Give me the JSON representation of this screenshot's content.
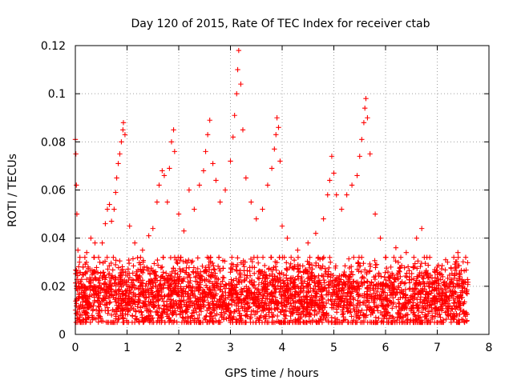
{
  "chart_data": {
    "type": "scatter",
    "title": "Day 120 of 2015, Rate Of TEC Index for receiver ctab",
    "xlabel": "GPS time / hours",
    "ylabel": "ROTI / TECUs",
    "xlim": [
      0,
      8
    ],
    "ylim": [
      0,
      0.12
    ],
    "xticks": [
      0,
      1,
      2,
      3,
      4,
      5,
      6,
      7,
      8
    ],
    "xtick_labels": [
      "0",
      "1",
      "2",
      "3",
      "4",
      "5",
      "6",
      "7",
      "8"
    ],
    "yticks": [
      0,
      0.02,
      0.04,
      0.06,
      0.08,
      0.1,
      0.12
    ],
    "ytick_labels": [
      "0",
      "0.02",
      "0.04",
      "0.06",
      "0.08",
      "0.1",
      "0.12"
    ],
    "grid": true,
    "marker": "+",
    "color": "#ff0000",
    "series": [
      {
        "name": "ROTI",
        "points": [
          [
            0.0,
            0.081
          ],
          [
            0.01,
            0.075
          ],
          [
            0.02,
            0.062
          ],
          [
            0.03,
            0.05
          ],
          [
            0.05,
            0.035
          ],
          [
            0.08,
            0.03
          ],
          [
            0.1,
            0.022
          ],
          [
            0.15,
            0.028
          ],
          [
            0.22,
            0.034
          ],
          [
            0.3,
            0.04
          ],
          [
            0.38,
            0.038
          ],
          [
            0.45,
            0.032
          ],
          [
            0.52,
            0.038
          ],
          [
            0.58,
            0.046
          ],
          [
            0.62,
            0.052
          ],
          [
            0.66,
            0.054
          ],
          [
            0.7,
            0.047
          ],
          [
            0.75,
            0.052
          ],
          [
            0.78,
            0.059
          ],
          [
            0.8,
            0.065
          ],
          [
            0.83,
            0.071
          ],
          [
            0.86,
            0.075
          ],
          [
            0.89,
            0.08
          ],
          [
            0.92,
            0.085
          ],
          [
            0.93,
            0.088
          ],
          [
            0.96,
            0.083
          ],
          [
            1.05,
            0.045
          ],
          [
            1.15,
            0.038
          ],
          [
            1.3,
            0.035
          ],
          [
            1.42,
            0.041
          ],
          [
            1.5,
            0.044
          ],
          [
            1.58,
            0.055
          ],
          [
            1.62,
            0.062
          ],
          [
            1.68,
            0.068
          ],
          [
            1.72,
            0.066
          ],
          [
            1.78,
            0.055
          ],
          [
            1.82,
            0.069
          ],
          [
            1.86,
            0.08
          ],
          [
            1.9,
            0.085
          ],
          [
            1.92,
            0.076
          ],
          [
            2.0,
            0.05
          ],
          [
            2.1,
            0.043
          ],
          [
            2.2,
            0.06
          ],
          [
            2.3,
            0.052
          ],
          [
            2.4,
            0.062
          ],
          [
            2.48,
            0.068
          ],
          [
            2.52,
            0.076
          ],
          [
            2.56,
            0.083
          ],
          [
            2.6,
            0.089
          ],
          [
            2.66,
            0.071
          ],
          [
            2.72,
            0.064
          ],
          [
            2.8,
            0.055
          ],
          [
            2.9,
            0.06
          ],
          [
            3.0,
            0.072
          ],
          [
            3.05,
            0.082
          ],
          [
            3.08,
            0.091
          ],
          [
            3.12,
            0.1
          ],
          [
            3.14,
            0.11
          ],
          [
            3.16,
            0.118
          ],
          [
            3.2,
            0.104
          ],
          [
            3.24,
            0.085
          ],
          [
            3.3,
            0.065
          ],
          [
            3.4,
            0.055
          ],
          [
            3.5,
            0.048
          ],
          [
            3.62,
            0.052
          ],
          [
            3.72,
            0.062
          ],
          [
            3.8,
            0.069
          ],
          [
            3.85,
            0.077
          ],
          [
            3.88,
            0.083
          ],
          [
            3.9,
            0.09
          ],
          [
            3.93,
            0.086
          ],
          [
            3.96,
            0.072
          ],
          [
            4.0,
            0.045
          ],
          [
            4.1,
            0.04
          ],
          [
            4.3,
            0.035
          ],
          [
            4.5,
            0.038
          ],
          [
            4.65,
            0.042
          ],
          [
            4.8,
            0.048
          ],
          [
            4.88,
            0.058
          ],
          [
            4.92,
            0.064
          ],
          [
            4.96,
            0.074
          ],
          [
            5.0,
            0.067
          ],
          [
            5.05,
            0.058
          ],
          [
            5.15,
            0.052
          ],
          [
            5.25,
            0.058
          ],
          [
            5.35,
            0.062
          ],
          [
            5.45,
            0.066
          ],
          [
            5.5,
            0.074
          ],
          [
            5.54,
            0.081
          ],
          [
            5.58,
            0.088
          ],
          [
            5.6,
            0.094
          ],
          [
            5.62,
            0.098
          ],
          [
            5.65,
            0.09
          ],
          [
            5.7,
            0.075
          ],
          [
            5.8,
            0.05
          ],
          [
            5.9,
            0.04
          ],
          [
            6.0,
            0.032
          ],
          [
            6.2,
            0.036
          ],
          [
            6.4,
            0.034
          ],
          [
            6.6,
            0.04
          ],
          [
            6.7,
            0.044
          ],
          [
            6.8,
            0.032
          ],
          [
            7.0,
            0.028
          ],
          [
            7.2,
            0.03
          ],
          [
            7.4,
            0.034
          ],
          [
            7.55,
            0.032
          ]
        ],
        "baseline_band": {
          "x": [
            0,
            7.6
          ],
          "center": 0.016,
          "lower": 0.005,
          "upper": 0.032,
          "sample_count": 3200
        }
      }
    ]
  }
}
